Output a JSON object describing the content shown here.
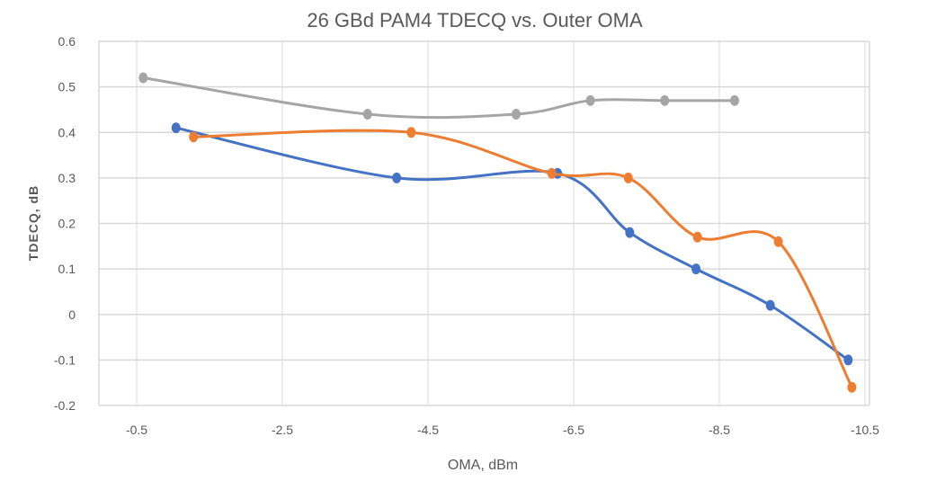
{
  "chart_data": {
    "type": "line",
    "title": "26 GBd PAM4 TDECQ vs. Outer OMA",
    "xlabel": "OMA, dBm",
    "ylabel": "TDECQ, dB",
    "xlim": [
      -0.5,
      -10.5
    ],
    "ylim": [
      -0.2,
      0.6
    ],
    "x_reversed": true,
    "xticks": [
      "-0.5",
      "-2.5",
      "-4.5",
      "-6.5",
      "-8.5",
      "-10.5"
    ],
    "xtick_values": [
      -0.5,
      -2.5,
      -4.5,
      -6.5,
      -8.5,
      -10.5
    ],
    "yticks": [
      "0.6",
      "0.5",
      "0.4",
      "0.3",
      "0.2",
      "0.1",
      "0",
      "-0.1",
      "-0.2"
    ],
    "ytick_values": [
      0.6,
      0.5,
      0.4,
      0.3,
      0.2,
      0.1,
      0,
      -0.1,
      -0.2
    ],
    "grid": true,
    "smooth": true,
    "legend": "none",
    "series": [
      {
        "color": "#a5a5a5",
        "x": [
          -0.59,
          -3.67,
          -5.71,
          -6.73,
          -7.75,
          -8.71
        ],
        "y": [
          0.52,
          0.44,
          0.44,
          0.47,
          0.47,
          0.47
        ]
      },
      {
        "color": "#4472c4",
        "x": [
          -1.04,
          -4.07,
          -6.28,
          -7.27,
          -8.18,
          -9.2,
          -10.27
        ],
        "y": [
          0.41,
          0.3,
          0.31,
          0.18,
          0.1,
          0.02,
          -0.1
        ]
      },
      {
        "color": "#ed7d31",
        "x": [
          -1.28,
          -4.27,
          -6.2,
          -7.25,
          -8.2,
          -9.31,
          -10.32
        ],
        "y": [
          0.39,
          0.4,
          0.31,
          0.3,
          0.17,
          0.16,
          -0.16
        ]
      }
    ]
  }
}
